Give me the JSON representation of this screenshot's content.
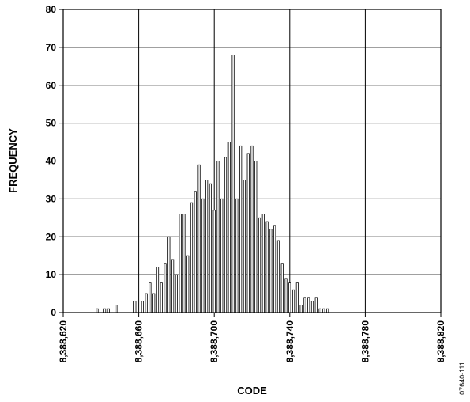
{
  "chart_data": {
    "type": "bar",
    "xlabel": "CODE",
    "ylabel": "FREQUENCY",
    "xlim": [
      8388620,
      8388820
    ],
    "ylim": [
      0,
      80
    ],
    "xticks": [
      8388620,
      8388660,
      8388700,
      8388740,
      8388780,
      8388820
    ],
    "xtick_labels": [
      "8,388,620",
      "8,388,660",
      "8,388,700",
      "8,388,740",
      "8,388,780",
      "8,388,820"
    ],
    "yticks": [
      0,
      10,
      20,
      30,
      40,
      50,
      60,
      70,
      80
    ],
    "ytick_labels": [
      "0",
      "10",
      "20",
      "30",
      "40",
      "50",
      "60",
      "70",
      "80"
    ],
    "grid": true,
    "figure_id": "07640-111",
    "x": [
      8388638,
      8388642,
      8388644,
      8388648,
      8388658,
      8388662,
      8388664,
      8388666,
      8388668,
      8388670,
      8388672,
      8388674,
      8388676,
      8388678,
      8388680,
      8388682,
      8388684,
      8388686,
      8388688,
      8388690,
      8388692,
      8388694,
      8388696,
      8388698,
      8388700,
      8388702,
      8388704,
      8388706,
      8388708,
      8388710,
      8388712,
      8388714,
      8388716,
      8388718,
      8388720,
      8388722,
      8388724,
      8388726,
      8388728,
      8388730,
      8388732,
      8388734,
      8388736,
      8388738,
      8388740,
      8388742,
      8388744,
      8388746,
      8388748,
      8388750,
      8388752,
      8388754,
      8388756,
      8388758,
      8388760,
      8388762,
      8388764,
      8388766,
      8388768,
      8388770,
      8388772,
      8388774,
      8388776,
      8388778,
      8388780,
      8388782,
      8388784,
      8388786,
      8388788,
      8388792
    ],
    "values": [
      1,
      1,
      1,
      2,
      3,
      3,
      5,
      8,
      5,
      12,
      8,
      13,
      20,
      14,
      10,
      26,
      26,
      15,
      29,
      32,
      39,
      30,
      35,
      34,
      27,
      40,
      30,
      41,
      45,
      68,
      30,
      44,
      35,
      42,
      44,
      40,
      25,
      26,
      24,
      22,
      23,
      19,
      13,
      9,
      8,
      6,
      8,
      2,
      4,
      4,
      3,
      4,
      1,
      1,
      1,
      0,
      0,
      0,
      0,
      0,
      0,
      0,
      0,
      0,
      0,
      0,
      0,
      0,
      0,
      0
    ]
  }
}
